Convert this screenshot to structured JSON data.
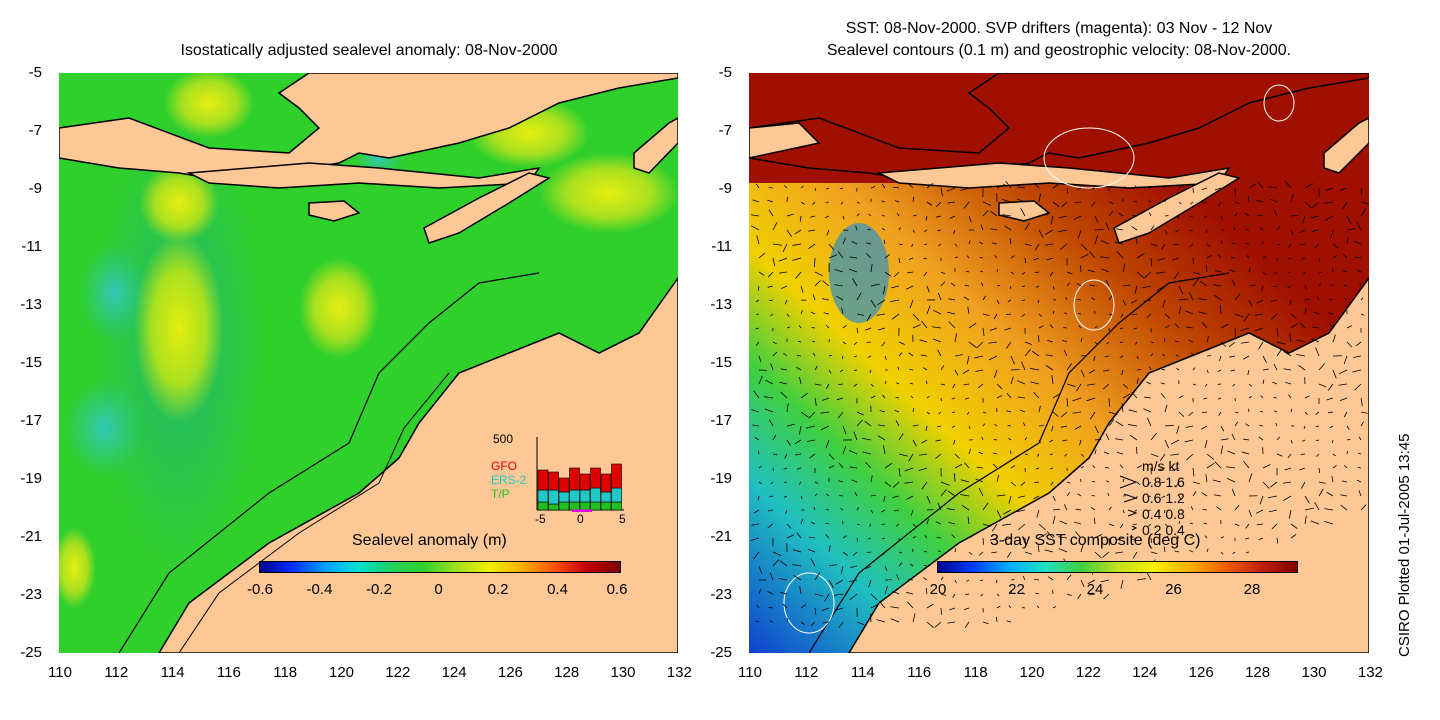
{
  "left": {
    "title": "Isostatically adjusted sealevel anomaly: 08-Nov-2000",
    "colorbar_title": "Sealevel anomaly (m)",
    "colorbar_ticks": [
      "-0.6",
      "-0.4",
      "-0.2",
      "0",
      "0.2",
      "0.4",
      "0.6"
    ],
    "inset": {
      "ymax": "500",
      "series": [
        {
          "name": "GFO",
          "color": "#e00000"
        },
        {
          "name": "ERS-2",
          "color": "#20c8c8"
        },
        {
          "name": "T/P",
          "color": "#20c020"
        }
      ],
      "xticks": [
        "-5",
        "0",
        "5"
      ]
    }
  },
  "right": {
    "title_line1": "SST: 08-Nov-2000. SVP drifters (magenta): 03 Nov - 12 Nov",
    "title_line2": "Sealevel contours (0.1 m) and geostrophic velocity: 08-Nov-2000.",
    "colorbar_title": "3-day SST composite (deg C)",
    "colorbar_ticks": [
      "20",
      "22",
      "24",
      "26",
      "28"
    ],
    "velocity_legend": {
      "header": "m/s  kt",
      "rows": [
        "0.8  1.6",
        "0.6  1.2",
        "0.4  0.8",
        "0.2  0.4"
      ]
    }
  },
  "axes": {
    "lat_ticks": [
      "-5",
      "-7",
      "-9",
      "-11",
      "-13",
      "-15",
      "-17",
      "-19",
      "-21",
      "-23",
      "-25"
    ],
    "lon_ticks": [
      "110",
      "112",
      "114",
      "116",
      "118",
      "120",
      "122",
      "124",
      "126",
      "128",
      "130",
      "132"
    ]
  },
  "credit": "CSIRO Plotted 01-Jul-2005 13:45",
  "colors": {
    "land": "#fdc895",
    "ocean_green": "#2fd32f",
    "sst_red": "#a01000"
  }
}
